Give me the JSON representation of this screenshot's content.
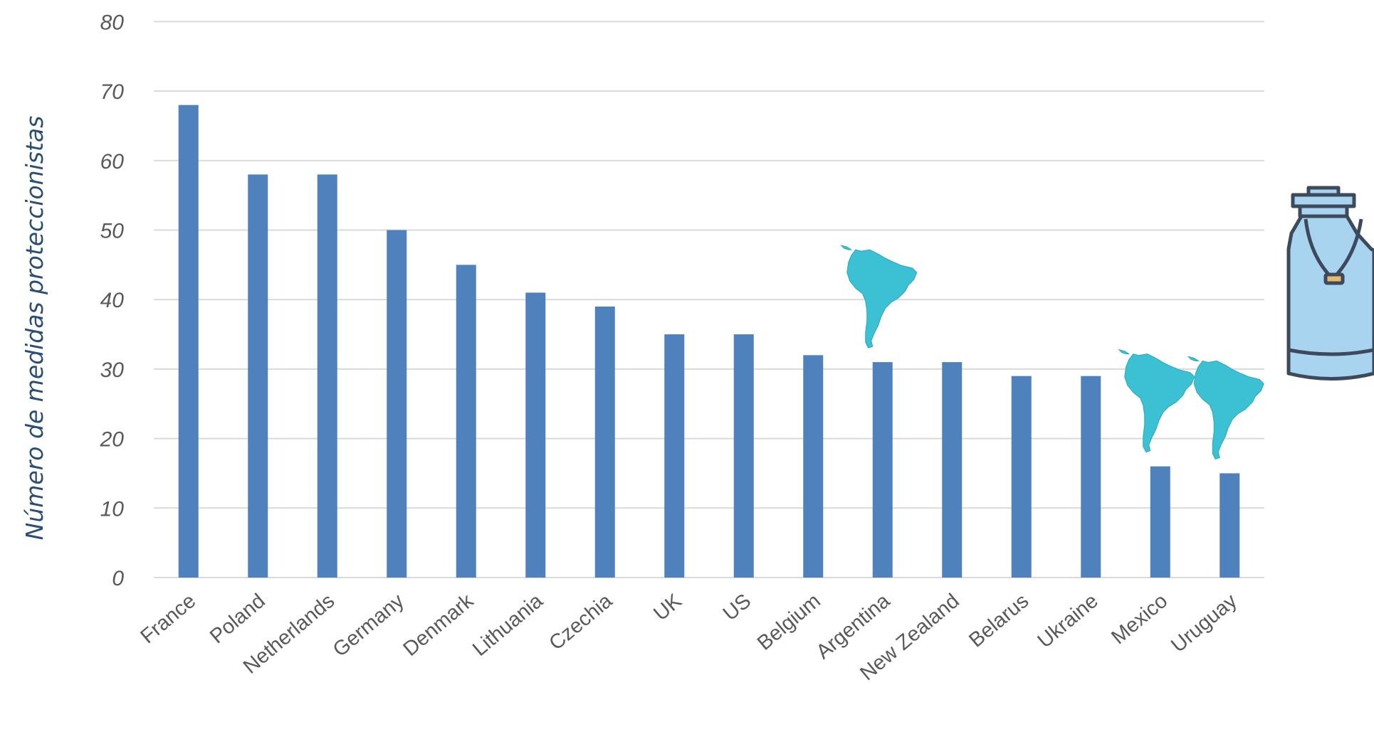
{
  "chart_data": {
    "type": "bar",
    "ylabel": "Número de medidas proteccionistas",
    "xlabel": "",
    "ylim": [
      0,
      80
    ],
    "yticks": [
      0,
      10,
      20,
      30,
      40,
      50,
      60,
      70,
      80
    ],
    "grid": true,
    "categories": [
      "France",
      "Poland",
      "Netherlands",
      "Germany",
      "Denmark",
      "Lithuania",
      "Czechia",
      "UK",
      "US",
      "Belgium",
      "Argentina",
      "New Zealand",
      "Belarus",
      "Ukraine",
      "Mexico",
      "Uruguay"
    ],
    "values": [
      68,
      58,
      58,
      50,
      45,
      41,
      39,
      35,
      35,
      32,
      31,
      31,
      29,
      29,
      16,
      15
    ],
    "colors": {
      "bar": "#4f81bd",
      "grid": "#d9d9d9",
      "map": "#3cc1d4",
      "can": "#a9d4ef",
      "outline": "#3c4a5c"
    },
    "annotations": {
      "latin_america_map_icon_on": [
        "Argentina",
        "Mexico",
        "Uruguay"
      ],
      "decoration_icon": "milk-can-icon"
    }
  }
}
